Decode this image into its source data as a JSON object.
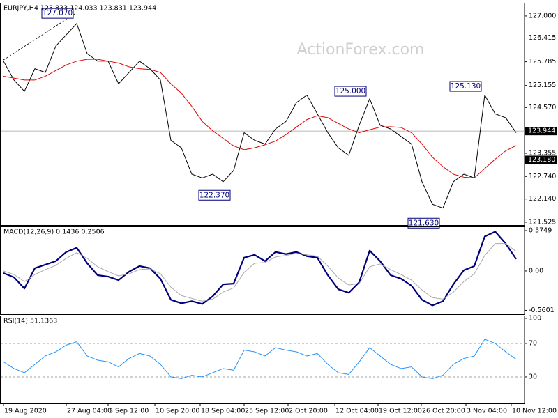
{
  "watermark": "ActionForex.com",
  "chart_data": [
    {
      "type": "line",
      "title": "EURJPY,H4  123.833 124.033 123.831 123.944",
      "xlim": [
        -0.333,
        49.8
      ],
      "ylim": [
        121.45,
        127.35
      ],
      "yticks": [
        {
          "value": 127,
          "label": "127.000"
        },
        126.415,
        125.785,
        125.155,
        {
          "value": 124.57,
          "label": "124.570"
        },
        123.355,
        {
          "value": 122.74,
          "label": "122.740"
        },
        {
          "value": 122.14,
          "label": "122.140"
        },
        121.525
      ],
      "series": [
        {
          "color": "#000000",
          "width": 1,
          "values": [
            125.8,
            125.3,
            125.0,
            125.6,
            125.5,
            126.2,
            126.5,
            126.8,
            126.0,
            125.8,
            125.8,
            125.2,
            125.5,
            125.8,
            125.6,
            125.3,
            123.7,
            123.5,
            122.8,
            122.7,
            122.8,
            122.6,
            122.9,
            123.9,
            123.7,
            123.6,
            124.0,
            124.2,
            124.7,
            124.9,
            124.4,
            123.9,
            123.5,
            123.3,
            124.1,
            124.8,
            124.1,
            124.0,
            123.8,
            123.6,
            122.6,
            122.0,
            121.9,
            122.6,
            122.8,
            122.7,
            124.9,
            124.4,
            124.3,
            123.9
          ]
        },
        {
          "color": "#e00000",
          "width": 1,
          "values": [
            125.4,
            125.35,
            125.3,
            125.3,
            125.4,
            125.55,
            125.7,
            125.8,
            125.85,
            125.85,
            125.8,
            125.75,
            125.65,
            125.6,
            125.58,
            125.5,
            125.2,
            124.95,
            124.6,
            124.2,
            123.95,
            123.75,
            123.55,
            123.45,
            123.5,
            123.58,
            123.68,
            123.85,
            124.05,
            124.25,
            124.35,
            124.3,
            124.15,
            124.0,
            123.9,
            123.98,
            124.05,
            124.06,
            124.04,
            123.9,
            123.6,
            123.25,
            123.0,
            122.8,
            122.72,
            122.7,
            122.95,
            123.2,
            123.42,
            123.56
          ]
        }
      ],
      "price_lines": [
        {
          "value": 123.944,
          "label": "123.944",
          "color": "#a0a0a0",
          "style": "solid"
        },
        {
          "value": 123.18,
          "label": "123.180",
          "color": "#000000",
          "style": "dashed"
        }
      ],
      "annotations": [
        {
          "x": 7,
          "value": 127.07,
          "label": "127.070"
        },
        {
          "x": 35,
          "value": 125,
          "label": "125.000"
        },
        {
          "x": 46,
          "value": 125.13,
          "label": "125.130"
        },
        {
          "x": 22,
          "value": 122.37,
          "label": "122.370"
        },
        {
          "x": 42,
          "value": 121.63,
          "label": "121.630"
        }
      ]
    },
    {
      "type": "line",
      "title": "MACD(12,26,9) 0.1436 0.2506",
      "xlim": [
        -0.333,
        49.8
      ],
      "ylim": [
        -0.615,
        0.634
      ],
      "yticks": [
        0.5749,
        {
          "value": 0,
          "label": "0.00"
        },
        -0.5601
      ],
      "series": [
        {
          "color": "#00007a",
          "width": 2.2,
          "values": [
            -0.03,
            -0.09,
            -0.25,
            0.04,
            0.09,
            0.14,
            0.27,
            0.33,
            0.11,
            -0.06,
            -0.08,
            -0.13,
            -0.01,
            0.07,
            0.04,
            -0.11,
            -0.41,
            -0.46,
            -0.43,
            -0.47,
            -0.36,
            -0.19,
            -0.18,
            0.19,
            0.23,
            0.14,
            0.27,
            0.24,
            0.27,
            0.21,
            0.19,
            -0.06,
            -0.26,
            -0.31,
            -0.16,
            0.29,
            0.14,
            -0.06,
            -0.11,
            -0.21,
            -0.41,
            -0.49,
            -0.43,
            -0.19,
            0.01,
            0.07,
            0.49,
            0.56,
            0.39,
            0.17
          ]
        },
        {
          "color": "#a9a9a9",
          "width": 1,
          "values": [
            0.0,
            -0.05,
            -0.15,
            -0.05,
            0.02,
            0.08,
            0.18,
            0.26,
            0.18,
            0.06,
            -0.01,
            -0.07,
            -0.04,
            0.02,
            0.03,
            -0.04,
            -0.23,
            -0.35,
            -0.39,
            -0.43,
            -0.4,
            -0.3,
            -0.24,
            -0.02,
            0.11,
            0.12,
            0.2,
            0.22,
            0.25,
            0.23,
            0.21,
            0.07,
            -0.1,
            -0.2,
            -0.18,
            0.06,
            0.1,
            0.02,
            -0.05,
            -0.13,
            -0.27,
            -0.38,
            -0.4,
            -0.3,
            -0.15,
            -0.04,
            0.22,
            0.39,
            0.39,
            0.28
          ]
        }
      ]
    },
    {
      "type": "line",
      "title": "RSI(14) 51.1363",
      "xlim": [
        -0.333,
        49.8
      ],
      "ylim": [
        -1.7,
        103.3
      ],
      "yticks": [
        100,
        70,
        30
      ],
      "levels": [
        70,
        30
      ],
      "series": [
        {
          "color": "#1e90ff",
          "width": 1,
          "values": [
            48,
            40,
            35,
            45,
            55,
            60,
            68,
            72,
            55,
            50,
            48,
            42,
            52,
            58,
            55,
            45,
            30,
            28,
            32,
            30,
            35,
            40,
            38,
            62,
            60,
            55,
            65,
            62,
            60,
            55,
            58,
            45,
            35,
            33,
            48,
            65,
            55,
            45,
            40,
            42,
            30,
            28,
            32,
            45,
            52,
            55,
            75,
            70,
            60,
            51
          ]
        }
      ],
      "xticks": [
        {
          "value": 0,
          "label": "19 Aug 2020"
        },
        {
          "value": 6,
          "label": "27 Aug 04:00"
        },
        {
          "value": 10,
          "label": "3 Sep 12:00"
        },
        {
          "value": 14.47,
          "label": "10 Sep 20:00"
        },
        {
          "value": 18.8,
          "label": "18 Sep 04:00"
        },
        {
          "value": 23,
          "label": "25 Sep 12:00"
        },
        {
          "value": 27.2,
          "label": "2 Oct 20:00"
        },
        {
          "value": 31.67,
          "label": "12 Oct 04:00"
        },
        {
          "value": 35.8,
          "label": "19 Oct 12:00"
        },
        {
          "value": 39.93,
          "label": "26 Oct 20:00"
        },
        {
          "value": 44.2,
          "label": "3 Nov 04:00"
        },
        {
          "value": 48.53,
          "label": "10 Nov 12:00"
        }
      ]
    }
  ]
}
